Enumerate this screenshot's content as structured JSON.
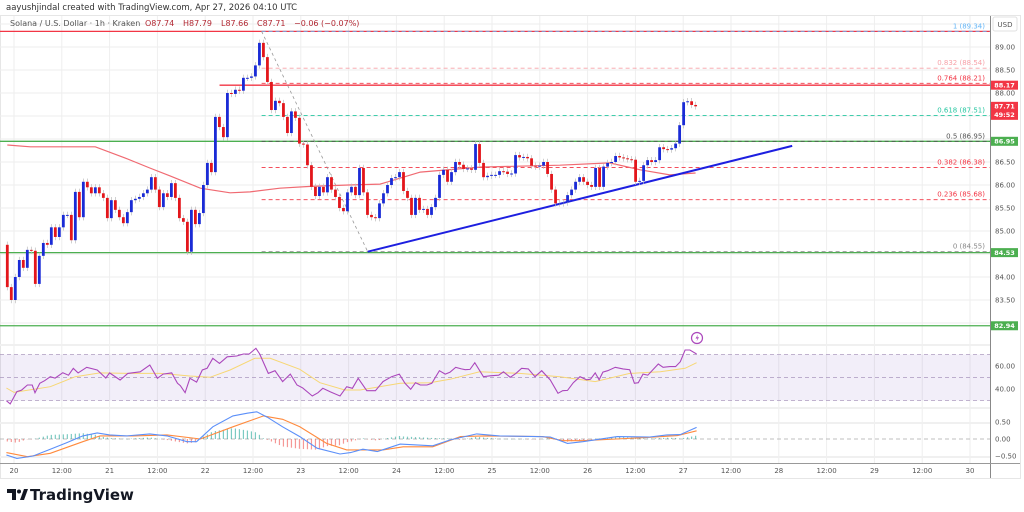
{
  "header": {
    "credit": "aayushjindal created with TradingView.com, Apr 27, 2026 04:10 UTC"
  },
  "legend": {
    "symbol": "Solana / U.S. Dollar · 1h · Kraken",
    "open": "O87.74",
    "high": "H87.79",
    "low": "L87.66",
    "close": "C87.71",
    "change": "−0.06 (−0.07%)"
  },
  "currency": "USD",
  "brand": "TradingView",
  "colors": {
    "up": "#1a2bd6",
    "down": "#e3161b",
    "trendline": "#1d1fe0",
    "resistance": "#f23645",
    "support": "#4caf50",
    "ma": "#f06a72",
    "rsi": "#ab47bc",
    "rsi_ma": "#f7d774",
    "macd": "#5b8ff9",
    "signal": "#ff8a3d"
  },
  "chart_data": {
    "type": "candlestick",
    "interval": "1h",
    "time_range_days": [
      19.93,
      27.13
    ],
    "first_open": 84.7,
    "closes": [
      83.78,
      83.5,
      84.0,
      84.37,
      84.2,
      84.59,
      84.57,
      83.85,
      84.46,
      84.74,
      84.7,
      85.08,
      84.87,
      85.08,
      85.35,
      85.35,
      84.8,
      85.85,
      85.3,
      86.07,
      85.95,
      85.82,
      85.95,
      85.82,
      85.72,
      85.28,
      85.67,
      85.46,
      85.3,
      85.17,
      85.41,
      85.67,
      85.7,
      85.74,
      85.82,
      85.9,
      86.17,
      85.9,
      85.52,
      85.82,
      85.74,
      86.04,
      85.72,
      85.28,
      85.2,
      84.55,
      85.46,
      85.15,
      85.39,
      86.0,
      86.48,
      86.28,
      87.48,
      87.26,
      87.04,
      88.0,
      87.98,
      88.07,
      88.05,
      88.33,
      88.33,
      88.36,
      88.6,
      89.09,
      88.78,
      88.24,
      87.63,
      87.83,
      87.78,
      87.48,
      87.13,
      87.6,
      87.46,
      86.9,
      86.88,
      86.43,
      85.96,
      85.76,
      85.96,
      85.84,
      86.17,
      85.9,
      85.74,
      85.5,
      85.43,
      85.84,
      85.96,
      85.78,
      86.37,
      85.84,
      85.35,
      85.3,
      85.28,
      85.6,
      85.82,
      86.0,
      86.15,
      86.17,
      86.28,
      85.87,
      85.72,
      85.35,
      85.72,
      85.46,
      85.48,
      85.35,
      85.52,
      85.72,
      86.22,
      86.33,
      86.07,
      86.28,
      86.5,
      86.44,
      86.35,
      86.36,
      86.33,
      86.89,
      86.48,
      86.17,
      86.2,
      86.22,
      86.22,
      86.3,
      86.29,
      86.24,
      86.25,
      86.65,
      86.6,
      86.61,
      86.58,
      86.42,
      86.4,
      86.42,
      86.5,
      86.24,
      85.9,
      85.6,
      85.6,
      85.62,
      85.78,
      85.9,
      86.07,
      86.17,
      86.07,
      86.0,
      85.96,
      86.37,
      85.96,
      86.4,
      86.48,
      86.5,
      86.63,
      86.6,
      86.58,
      86.56,
      86.55,
      86.07,
      86.09,
      86.43,
      86.54,
      86.5,
      86.54,
      86.82,
      86.78,
      86.77,
      86.8,
      86.9,
      87.3,
      87.8,
      87.82,
      87.74,
      87.71
    ],
    "moving_average": [
      [
        19.93,
        86.87
      ],
      [
        20.17,
        86.83
      ],
      [
        20.85,
        86.83
      ],
      [
        21.16,
        86.59
      ],
      [
        21.42,
        86.37
      ],
      [
        21.63,
        86.2
      ],
      [
        21.95,
        85.93
      ],
      [
        22.26,
        85.83
      ],
      [
        22.47,
        85.85
      ],
      [
        22.78,
        85.93
      ],
      [
        23.1,
        85.97
      ],
      [
        23.5,
        86.0
      ],
      [
        23.83,
        86.02
      ],
      [
        24.25,
        86.28
      ],
      [
        24.87,
        86.39
      ],
      [
        25.71,
        86.43
      ],
      [
        26.23,
        86.48
      ],
      [
        26.55,
        86.33
      ],
      [
        26.86,
        86.22
      ],
      [
        27.13,
        86.26
      ]
    ],
    "x_axis": {
      "range": [
        19.85,
        30.18
      ],
      "ticks": [
        [
          "20",
          20
        ],
        [
          "12:00",
          20.5
        ],
        [
          "21",
          21
        ],
        [
          "12:00",
          21.5
        ],
        [
          "22",
          22
        ],
        [
          "12:00",
          22.5
        ],
        [
          "23",
          23
        ],
        [
          "12:00",
          23.5
        ],
        [
          "24",
          24
        ],
        [
          "12:00",
          24.5
        ],
        [
          "25",
          25
        ],
        [
          "12:00",
          25.5
        ],
        [
          "26",
          26
        ],
        [
          "12:00",
          26.5
        ],
        [
          "27",
          27
        ],
        [
          "12:00",
          27.5
        ],
        [
          "28",
          28
        ],
        [
          "12:00",
          28.5
        ],
        [
          "29",
          29
        ],
        [
          "12:00",
          29.5
        ],
        [
          "30",
          30
        ]
      ]
    },
    "y_axis": {
      "range": [
        82.8,
        89.6
      ],
      "ticks": [
        "89.00",
        "88.50",
        "88.00",
        "86.50",
        "86.00",
        "85.50",
        "85.00",
        "84.00",
        "83.50"
      ]
    },
    "fibonacci": {
      "from": [
        22.59,
        89.34
      ],
      "to": [
        23.7,
        84.55
      ],
      "levels": [
        {
          "label": "1 (89.34)",
          "price": 89.34,
          "color": "#64b5f6"
        },
        {
          "label": "0.832 (88.54)",
          "price": 88.54,
          "color": "#f7a1a8"
        },
        {
          "label": "0.764 (88.21)",
          "price": 88.21,
          "color": "#f23645"
        },
        {
          "label": "0.618 (87.51)",
          "price": 87.51,
          "color": "#26c6a0"
        },
        {
          "label": "0.5 (86.95)",
          "price": 86.95,
          "color": "#555555"
        },
        {
          "label": "0.382 (86.38)",
          "price": 86.38,
          "color": "#f23645"
        },
        {
          "label": "0.236 (85.68)",
          "price": 85.68,
          "color": "#f23645"
        },
        {
          "label": "0 (84.55)",
          "price": 84.55,
          "color": "#888888"
        }
      ]
    },
    "trendline": [
      [
        23.7,
        84.55
      ],
      [
        28.14,
        86.85
      ]
    ],
    "horizontal_lines": [
      {
        "price": 89.34,
        "color": "#f23645",
        "start": 19.85
      },
      {
        "price": 88.17,
        "color": "#f23645",
        "start": 22.15
      },
      {
        "price": 86.95,
        "color": "#4caf50",
        "start": 19.85
      },
      {
        "price": 84.53,
        "color": "#4caf50",
        "start": 19.85
      },
      {
        "price": 82.94,
        "color": "#4caf50",
        "start": 19.85
      }
    ],
    "price_tags": [
      {
        "text": "88.17",
        "price": 88.17,
        "color": "#f23645"
      },
      {
        "text": "87.71",
        "sub": "49:52",
        "price": 87.71,
        "color": "#f23645"
      },
      {
        "text": "86.95",
        "price": 86.95,
        "color": "#4caf50"
      },
      {
        "text": "84.53",
        "price": 84.53,
        "color": "#4caf50"
      },
      {
        "text": "82.94",
        "price": 82.94,
        "color": "#4caf50"
      }
    ],
    "rsi": {
      "band": [
        30,
        70
      ],
      "ticks": [
        "60.00",
        "40.00"
      ],
      "values": [
        [
          19.92,
          29.8
        ],
        [
          19.96,
          27
        ],
        [
          20.03,
          37.7
        ],
        [
          20.08,
          39
        ],
        [
          20.14,
          43.5
        ],
        [
          20.19,
          43.5
        ],
        [
          20.22,
          36.8
        ],
        [
          20.27,
          45
        ],
        [
          20.32,
          47.2
        ],
        [
          20.38,
          50.7
        ],
        [
          20.43,
          49.5
        ],
        [
          20.51,
          54.2
        ],
        [
          20.57,
          52
        ],
        [
          20.62,
          58
        ],
        [
          20.67,
          54
        ],
        [
          20.76,
          58.9
        ],
        [
          20.87,
          56.5
        ],
        [
          20.96,
          49.6
        ],
        [
          21.0,
          54
        ],
        [
          21.11,
          47.8
        ],
        [
          21.19,
          53.6
        ],
        [
          21.32,
          55
        ],
        [
          21.42,
          60.9
        ],
        [
          21.5,
          49.3
        ],
        [
          21.56,
          53
        ],
        [
          21.65,
          54
        ],
        [
          21.71,
          45
        ],
        [
          21.74,
          43
        ],
        [
          21.79,
          36.8
        ],
        [
          21.84,
          49.3
        ],
        [
          21.91,
          46
        ],
        [
          21.97,
          56.5
        ],
        [
          22.02,
          58
        ],
        [
          22.08,
          66.7
        ],
        [
          22.15,
          62.3
        ],
        [
          22.23,
          68
        ],
        [
          22.33,
          68.7
        ],
        [
          22.4,
          70.4
        ],
        [
          22.46,
          70.4
        ],
        [
          22.53,
          75.4
        ],
        [
          22.57,
          70.4
        ],
        [
          22.66,
          53.6
        ],
        [
          22.73,
          55.9
        ],
        [
          22.81,
          46.4
        ],
        [
          22.89,
          53
        ],
        [
          22.96,
          43.5
        ],
        [
          23.02,
          41
        ],
        [
          23.12,
          33.9
        ],
        [
          23.18,
          36.8
        ],
        [
          23.23,
          40.6
        ],
        [
          23.31,
          37.5
        ],
        [
          23.41,
          33.9
        ],
        [
          23.48,
          42
        ],
        [
          23.54,
          40.6
        ],
        [
          23.6,
          49.3
        ],
        [
          23.69,
          38.5
        ],
        [
          23.78,
          38.5
        ],
        [
          23.86,
          46.4
        ],
        [
          23.95,
          50.7
        ],
        [
          24.03,
          53
        ],
        [
          24.09,
          45
        ],
        [
          24.15,
          39.7
        ],
        [
          24.2,
          45.5
        ],
        [
          24.25,
          43.5
        ],
        [
          24.32,
          43.5
        ],
        [
          24.37,
          45
        ],
        [
          24.45,
          55.9
        ],
        [
          24.51,
          53
        ],
        [
          24.56,
          54.5
        ],
        [
          24.62,
          58.9
        ],
        [
          24.68,
          57.5
        ],
        [
          24.72,
          56.8
        ],
        [
          24.77,
          57
        ],
        [
          24.82,
          62.9
        ],
        [
          24.91,
          50.7
        ],
        [
          24.98,
          51.5
        ],
        [
          25.07,
          52
        ],
        [
          25.12,
          55
        ],
        [
          25.19,
          50.2
        ],
        [
          25.25,
          53.6
        ],
        [
          25.31,
          58
        ],
        [
          25.38,
          57.5
        ],
        [
          25.45,
          50.7
        ],
        [
          25.52,
          55.9
        ],
        [
          25.61,
          47.8
        ],
        [
          25.69,
          36.3
        ],
        [
          25.74,
          38.5
        ],
        [
          25.79,
          38.8
        ],
        [
          25.85,
          45.5
        ],
        [
          25.92,
          50.7
        ],
        [
          25.99,
          48
        ],
        [
          26.03,
          48.5
        ],
        [
          26.08,
          54
        ],
        [
          26.12,
          48
        ],
        [
          26.16,
          54.7
        ],
        [
          26.21,
          55.9
        ],
        [
          26.29,
          58.9
        ],
        [
          26.37,
          57.5
        ],
        [
          26.44,
          56.8
        ],
        [
          26.49,
          45
        ],
        [
          26.53,
          45.5
        ],
        [
          26.58,
          53
        ],
        [
          26.63,
          52
        ],
        [
          26.74,
          61.7
        ],
        [
          26.79,
          58.9
        ],
        [
          26.86,
          59.5
        ],
        [
          26.92,
          59.5
        ],
        [
          26.97,
          63.7
        ],
        [
          27.02,
          73.9
        ],
        [
          27.07,
          73.9
        ],
        [
          27.14,
          70.4
        ]
      ],
      "ma": [
        [
          19.92,
          40.9
        ],
        [
          20.0,
          37
        ],
        [
          20.38,
          42
        ],
        [
          20.64,
          50.7
        ],
        [
          20.9,
          54
        ],
        [
          21.21,
          53.6
        ],
        [
          21.53,
          53.6
        ],
        [
          21.84,
          51.3
        ],
        [
          22.05,
          50.2
        ],
        [
          22.26,
          56.5
        ],
        [
          22.52,
          66.7
        ],
        [
          22.68,
          66.7
        ],
        [
          22.99,
          57.1
        ],
        [
          23.2,
          45.5
        ],
        [
          23.46,
          39.1
        ],
        [
          23.62,
          39.1
        ],
        [
          24.04,
          45
        ],
        [
          24.35,
          45.5
        ],
        [
          24.56,
          48.4
        ],
        [
          24.87,
          55
        ],
        [
          25.29,
          53.6
        ],
        [
          25.71,
          50.7
        ],
        [
          26.08,
          46.4
        ],
        [
          26.44,
          53.6
        ],
        [
          26.76,
          55
        ],
        [
          27.02,
          58
        ],
        [
          27.14,
          62.9
        ]
      ]
    },
    "macd": {
      "ticks": [
        "0.50",
        "0.00",
        "−0.50"
      ],
      "macd": [
        [
          19.92,
          -0.47
        ],
        [
          20.03,
          -0.57
        ],
        [
          20.2,
          -0.5
        ],
        [
          20.38,
          -0.3
        ],
        [
          20.55,
          -0.11
        ],
        [
          20.72,
          0.09
        ],
        [
          20.87,
          0.18
        ],
        [
          21.0,
          0.12
        ],
        [
          21.18,
          0.09
        ],
        [
          21.42,
          0.15
        ],
        [
          21.6,
          0.09
        ],
        [
          21.81,
          -0.08
        ],
        [
          21.91,
          -0.08
        ],
        [
          22.08,
          0.36
        ],
        [
          22.29,
          0.68
        ],
        [
          22.44,
          0.76
        ],
        [
          22.54,
          0.8
        ],
        [
          22.65,
          0.64
        ],
        [
          22.81,
          0.36
        ],
        [
          22.99,
          0.07
        ],
        [
          23.17,
          -0.27
        ],
        [
          23.41,
          -0.44
        ],
        [
          23.52,
          -0.4
        ],
        [
          23.65,
          -0.3
        ],
        [
          23.8,
          -0.37
        ],
        [
          24.04,
          -0.15
        ],
        [
          24.38,
          -0.2
        ],
        [
          24.56,
          -0.03
        ],
        [
          24.84,
          0.15
        ],
        [
          25.08,
          0.09
        ],
        [
          25.47,
          0.07
        ],
        [
          25.61,
          0.06
        ],
        [
          25.79,
          -0.13
        ],
        [
          25.95,
          -0.08
        ],
        [
          26.31,
          0.07
        ],
        [
          26.65,
          0.06
        ],
        [
          26.83,
          0.12
        ],
        [
          26.97,
          0.13
        ],
        [
          27.14,
          0.34
        ]
      ],
      "signal": [
        [
          19.92,
          -0.4
        ],
        [
          20.14,
          -0.52
        ],
        [
          20.38,
          -0.42
        ],
        [
          20.72,
          -0.08
        ],
        [
          20.9,
          0.09
        ],
        [
          21.25,
          0.09
        ],
        [
          21.6,
          0.12
        ],
        [
          21.95,
          0.0
        ],
        [
          22.29,
          0.36
        ],
        [
          22.61,
          0.68
        ],
        [
          22.81,
          0.58
        ],
        [
          22.99,
          0.36
        ],
        [
          23.27,
          -0.13
        ],
        [
          23.48,
          -0.32
        ],
        [
          23.86,
          -0.32
        ],
        [
          24.07,
          -0.23
        ],
        [
          24.38,
          -0.23
        ],
        [
          24.67,
          0.07
        ],
        [
          24.91,
          0.09
        ],
        [
          25.53,
          0.07
        ],
        [
          25.74,
          -0.05
        ],
        [
          25.95,
          -0.05
        ],
        [
          26.65,
          0.05
        ],
        [
          26.94,
          0.1
        ],
        [
          27.14,
          0.24
        ]
      ]
    }
  }
}
